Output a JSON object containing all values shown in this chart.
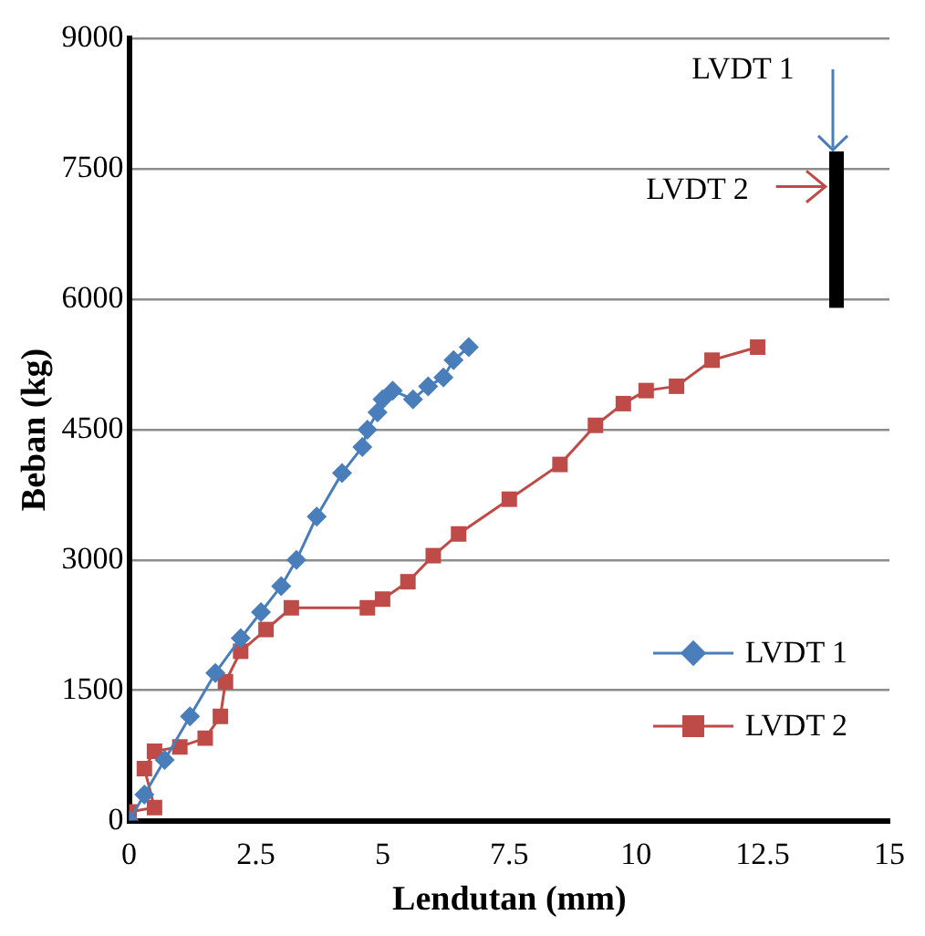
{
  "chart_data": {
    "type": "line",
    "xlabel": "Lendutan (mm)",
    "ylabel": "Beban (kg)",
    "xlim": [
      0,
      15
    ],
    "xticks": [
      0,
      {
        "value": 2.5,
        "label": "2.5"
      },
      5,
      {
        "value": 7.5,
        "label": "7.5"
      },
      10,
      {
        "value": 12.5,
        "label": "12.5"
      },
      15
    ],
    "ylim": [
      0,
      9000
    ],
    "yticks": [
      0,
      1500,
      3000,
      4500,
      6000,
      7500,
      9000
    ],
    "grid": "y",
    "legend": "bottom right",
    "line_style": "solid",
    "annotations": [
      "LVDT 1",
      "LVDT 2"
    ],
    "series": [
      {
        "name": "LVDT 1",
        "color": "#4a7ebb",
        "marker": "diamond",
        "x": [
          0,
          0.3,
          0.7,
          1.2,
          1.7,
          2.2,
          2.6,
          3.0,
          3.3,
          3.7,
          4.2,
          4.6,
          4.7,
          4.9,
          5.0,
          5.2,
          5.6,
          5.9,
          6.2,
          6.4,
          6.7
        ],
        "values": [
          0,
          300,
          700,
          1200,
          1700,
          2100,
          2400,
          2700,
          3000,
          3500,
          4000,
          4300,
          4500,
          4700,
          4850,
          4950,
          4850,
          5000,
          5100,
          5300,
          5450
        ]
      },
      {
        "name": "LVDT 2",
        "color": "#be4b48",
        "marker": "square",
        "x": [
          0,
          0.5,
          0.3,
          0.5,
          1.0,
          1.5,
          1.8,
          1.9,
          2.2,
          2.7,
          3.2,
          4.7,
          5.0,
          5.5,
          6.0,
          6.5,
          7.5,
          8.5,
          9.2,
          9.75,
          10.2,
          10.8,
          11.5,
          12.4
        ],
        "values": [
          100,
          150,
          600,
          800,
          850,
          950,
          1200,
          1600,
          1950,
          2200,
          2450,
          2450,
          2550,
          2750,
          3050,
          3300,
          3700,
          4100,
          4550,
          4800,
          4950,
          5000,
          5300,
          5450
        ]
      }
    ]
  }
}
